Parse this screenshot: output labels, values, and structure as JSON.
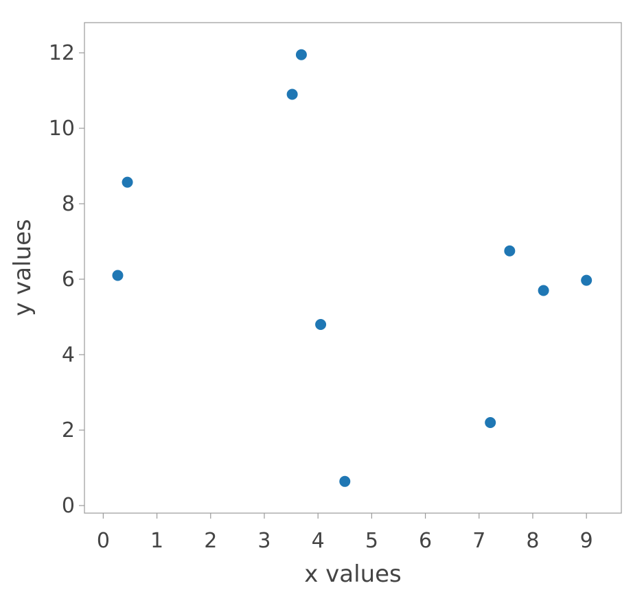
{
  "chart_data": {
    "type": "scatter",
    "xlabel": "x values",
    "ylabel": "y values",
    "xlim": [
      -0.35,
      9.65
    ],
    "ylim": [
      -0.2,
      12.8
    ],
    "xticks": [
      0,
      1,
      2,
      3,
      4,
      5,
      6,
      7,
      8,
      9
    ],
    "yticks": [
      0,
      2,
      4,
      6,
      8,
      10,
      12
    ],
    "grid": false,
    "color": "#1f77b4",
    "points": [
      {
        "x": 0.27,
        "y": 6.1
      },
      {
        "x": 0.45,
        "y": 8.57
      },
      {
        "x": 3.52,
        "y": 10.9
      },
      {
        "x": 3.69,
        "y": 11.95
      },
      {
        "x": 4.05,
        "y": 4.8
      },
      {
        "x": 4.5,
        "y": 0.64
      },
      {
        "x": 7.21,
        "y": 2.2
      },
      {
        "x": 7.57,
        "y": 6.75
      },
      {
        "x": 8.2,
        "y": 5.7
      },
      {
        "x": 9.0,
        "y": 5.97
      }
    ]
  }
}
